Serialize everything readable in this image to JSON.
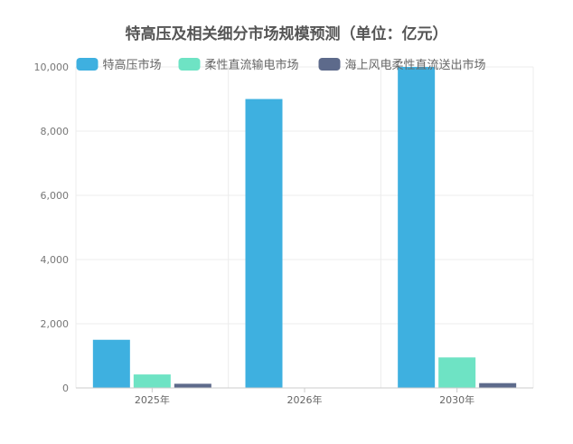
{
  "chart_data": {
    "type": "bar",
    "title": "特高压及相关细分市场规模预测（单位：亿元）",
    "categories": [
      "2025年",
      "2026年",
      "2030年"
    ],
    "series": [
      {
        "name": "特高压市场",
        "values": [
          1500,
          9000,
          10000
        ]
      },
      {
        "name": "柔性直流输电市场",
        "values": [
          420,
          0,
          950
        ]
      },
      {
        "name": "海上风电柔性直流送出市场",
        "values": [
          130,
          0,
          150
        ]
      }
    ],
    "y_ticks": [
      "0",
      "2,000",
      "4,000",
      "6,000",
      "8,000",
      "10,000"
    ],
    "ylim": [
      0,
      10000
    ],
    "grid": true,
    "legend_position": "top",
    "colors": [
      "#3eb0e0",
      "#6ee3c4",
      "#5d6a8b"
    ]
  }
}
